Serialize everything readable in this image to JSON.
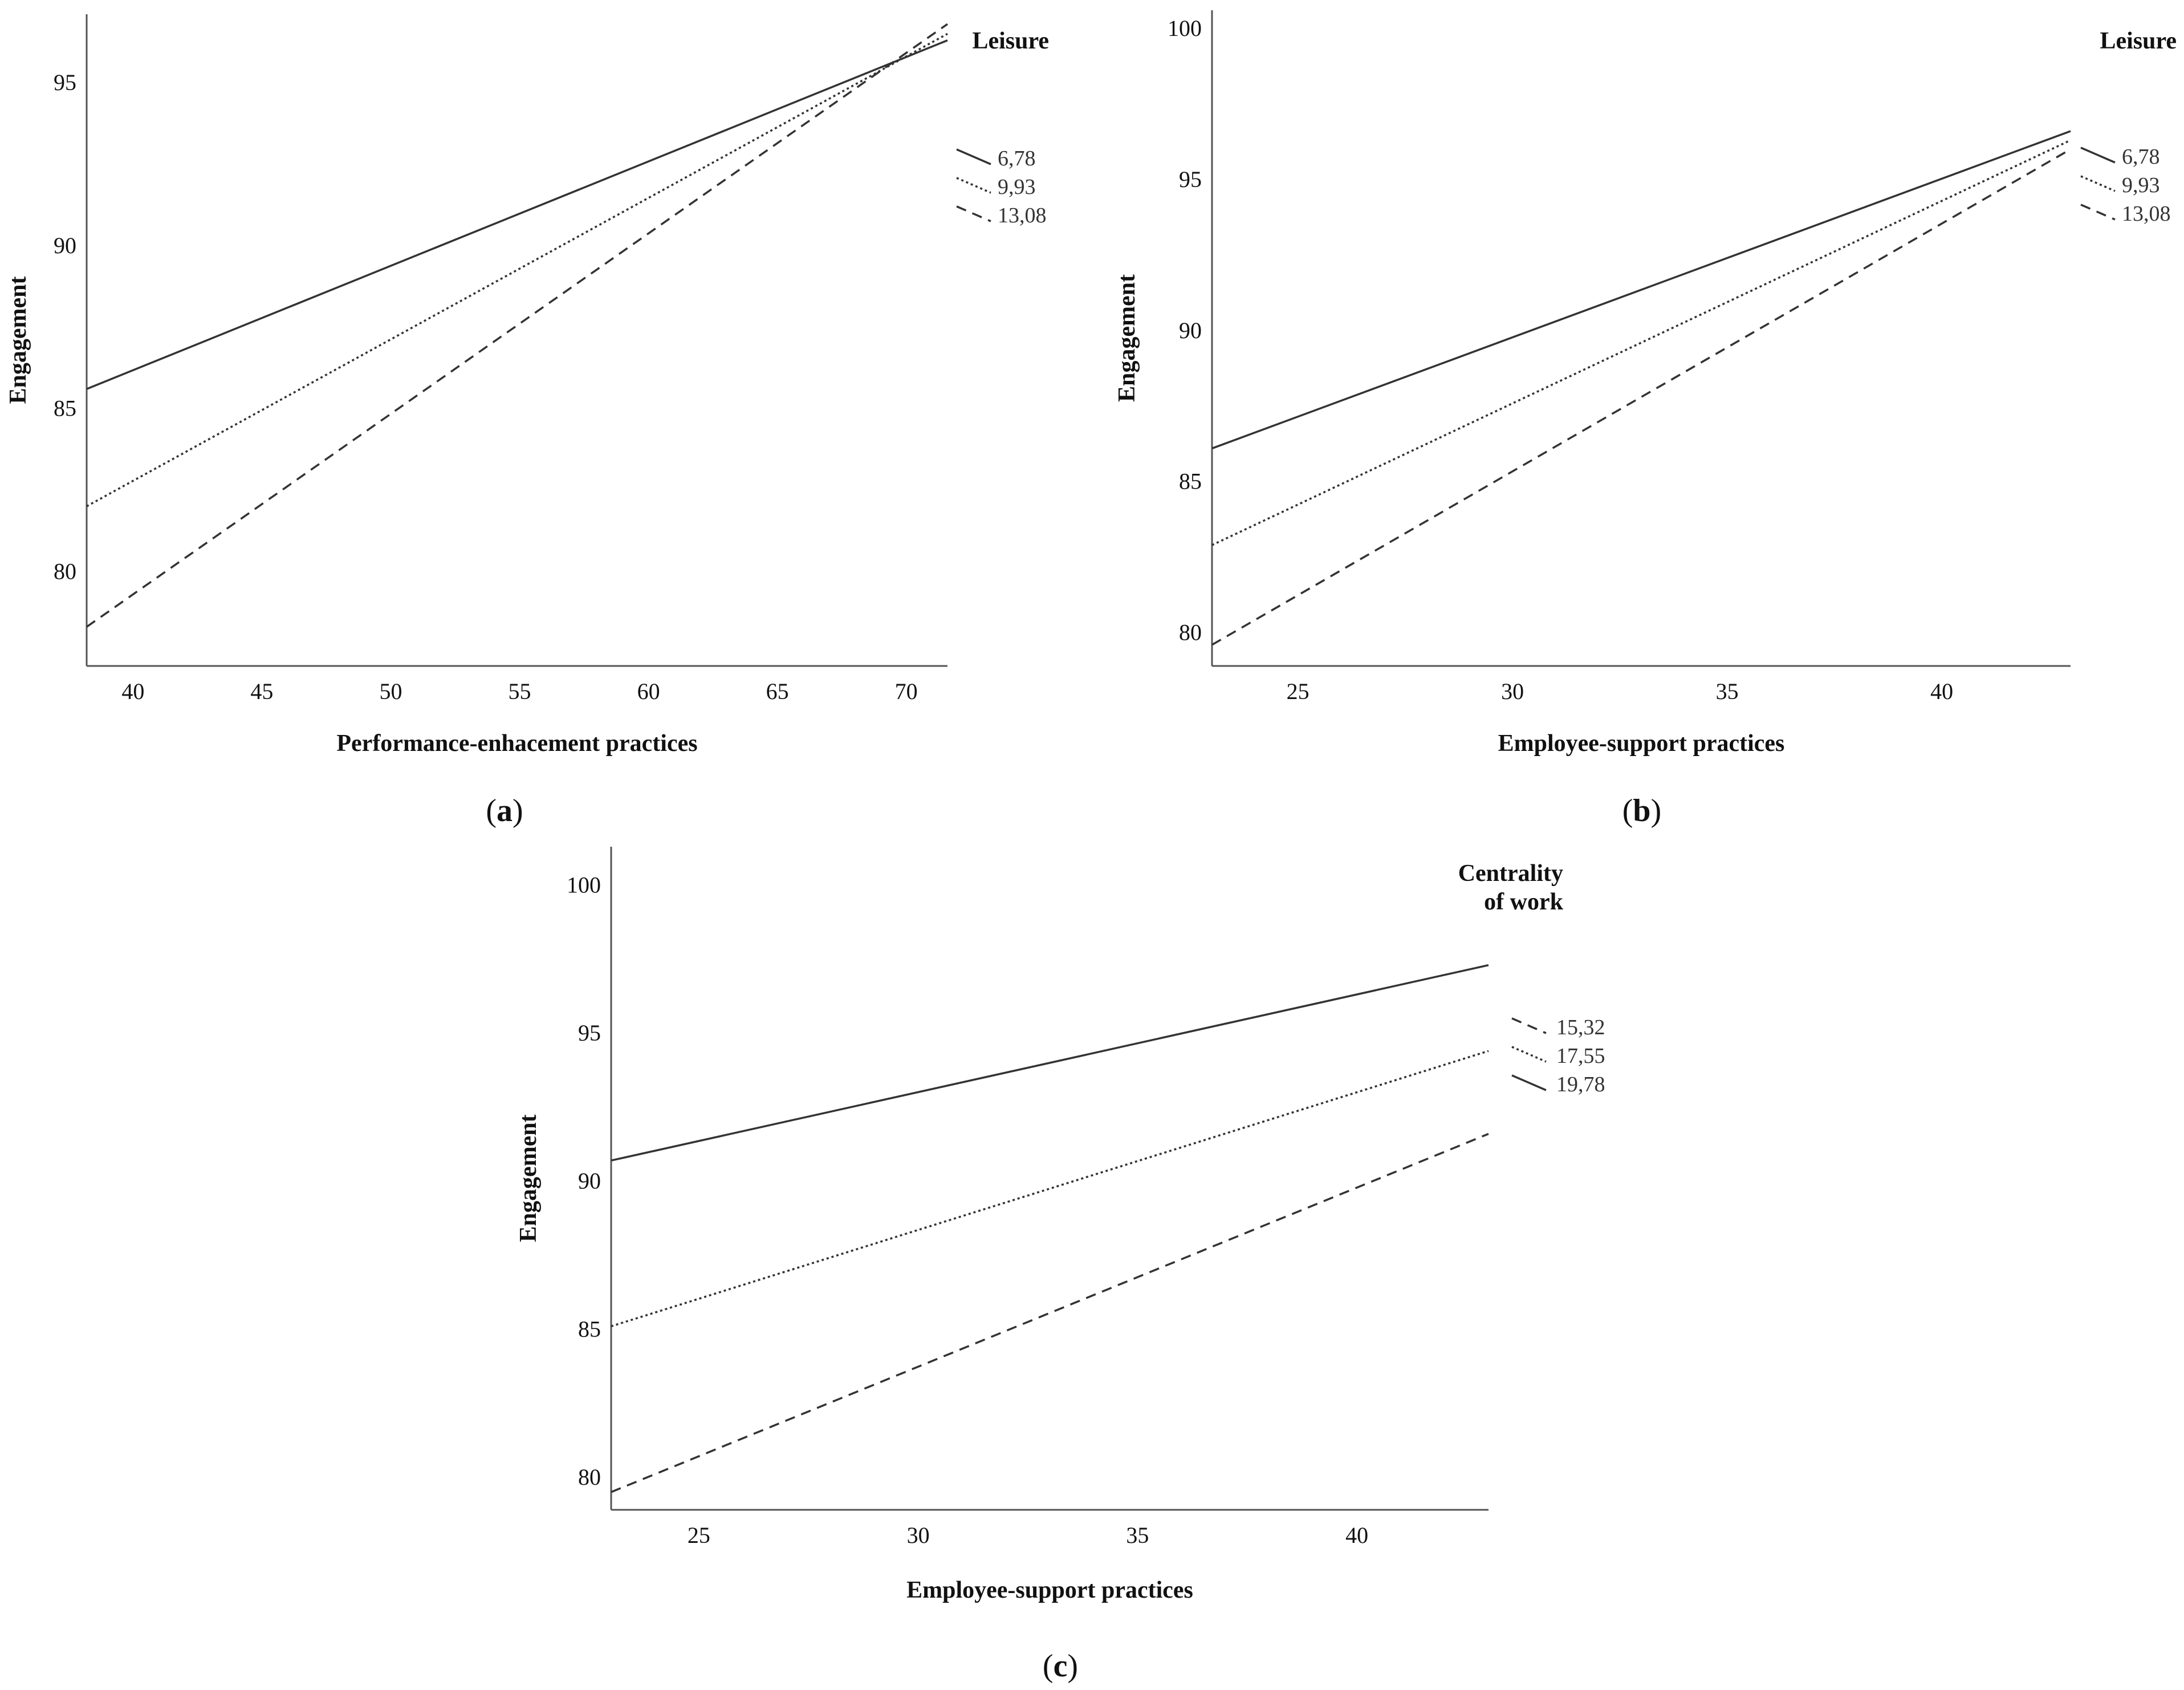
{
  "chart_data": [
    {
      "id": "a",
      "type": "line",
      "caption": "a",
      "xlabel": "Performance-enhacement practices",
      "ylabel": "Engagement",
      "xlim": [
        38.2,
        71.6
      ],
      "ylim": [
        77.1,
        97.1
      ],
      "xticks": [
        40,
        45,
        50,
        55,
        60,
        65,
        70
      ],
      "yticks": [
        80,
        85,
        90,
        95
      ],
      "legend_title": [
        "Leisure"
      ],
      "x": [
        38.2,
        71.6
      ],
      "series": [
        {
          "name": "6,78",
          "style": "solid",
          "values": [
            85.6,
            96.3
          ]
        },
        {
          "name": "9,93",
          "style": "dotted",
          "values": [
            82.0,
            96.5
          ]
        },
        {
          "name": "13,08",
          "style": "dashed",
          "values": [
            78.3,
            96.8
          ]
        }
      ]
    },
    {
      "id": "b",
      "type": "line",
      "caption": "b",
      "xlabel": "Employee-support practices",
      "ylabel": "Engagement",
      "xlim": [
        23.0,
        43.0
      ],
      "ylim": [
        78.9,
        100.6
      ],
      "xticks": [
        25,
        30,
        35,
        40
      ],
      "yticks": [
        80,
        85,
        90,
        95,
        100
      ],
      "legend_title": [
        "Leisure"
      ],
      "x": [
        23.0,
        43.0
      ],
      "series": [
        {
          "name": "6,78",
          "style": "solid",
          "values": [
            86.1,
            96.6
          ]
        },
        {
          "name": "9,93",
          "style": "dotted",
          "values": [
            82.9,
            96.3
          ]
        },
        {
          "name": "13,08",
          "style": "dashed",
          "values": [
            79.6,
            96.0
          ]
        }
      ]
    },
    {
      "id": "c",
      "type": "line",
      "caption": "c",
      "xlabel": "Employee-support practices",
      "ylabel": "Engagement",
      "xlim": [
        23.0,
        43.0
      ],
      "ylim": [
        78.9,
        101.3
      ],
      "xticks": [
        25,
        30,
        35,
        40
      ],
      "yticks": [
        80,
        85,
        90,
        95,
        100
      ],
      "legend_title": [
        "Centrality",
        "of work"
      ],
      "x": [
        23.0,
        43.0
      ],
      "series": [
        {
          "name": "15,32",
          "style": "dashed",
          "values": [
            79.5,
            91.6
          ]
        },
        {
          "name": "17,55",
          "style": "dotted",
          "values": [
            85.1,
            94.4
          ]
        },
        {
          "name": "19,78",
          "style": "solid",
          "values": [
            90.7,
            97.3
          ]
        }
      ]
    }
  ]
}
